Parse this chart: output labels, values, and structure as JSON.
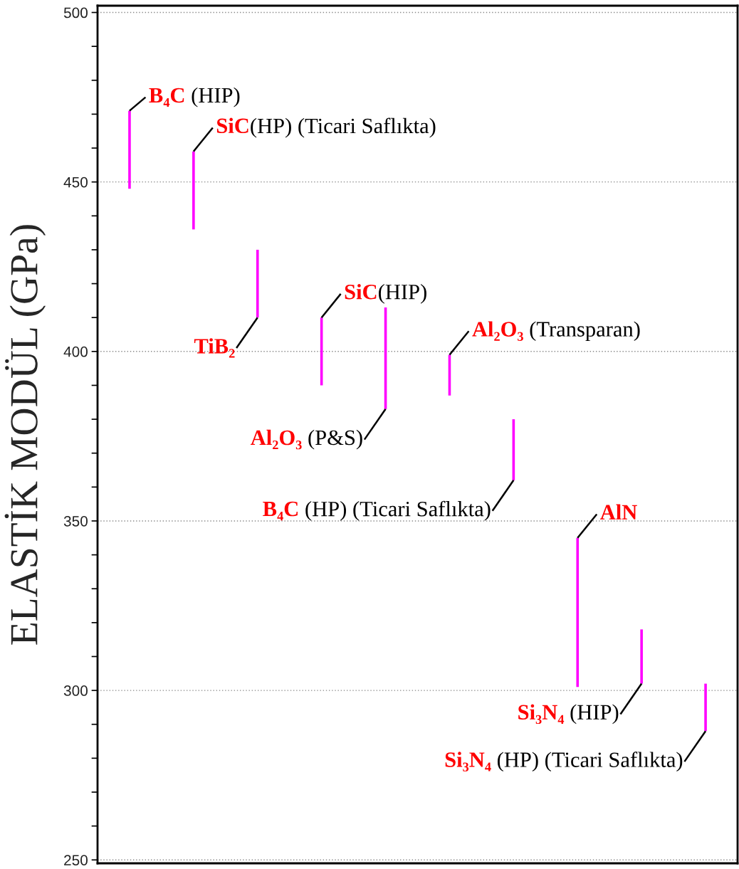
{
  "chart_data": {
    "type": "bar",
    "ylabel": "ELASTİK MODÜL (GPa)",
    "categories": [
      null,
      null,
      null,
      null,
      null,
      null,
      null,
      null,
      null,
      null
    ],
    "annotations": [
      "B₄C (HIP)",
      "SiC(HP) (Ticari Saflıkta)",
      "TiB₂",
      "SiC(HIP)",
      "Al₂O₃ (P&S)",
      "Al₂O₃ (Transparan)",
      "B₄C (HP) (Ticari Saflıkta)",
      "AlN",
      "Si₃N₄ (HIP)",
      "Si₃N₄ (HP) (Ticari Saflıkta)"
    ],
    "base": [
      448,
      436,
      410,
      390,
      383,
      387,
      362,
      301,
      302,
      288
    ],
    "values": [
      23,
      23,
      20,
      20,
      30,
      12,
      18,
      44,
      16,
      14
    ],
    "color": "#ff00ff",
    "ylim": [
      249,
      502
    ],
    "yticks": [
      250,
      {
        "value": 260,
        "label": null
      },
      {
        "value": 270,
        "label": null
      },
      {
        "value": 280,
        "label": null
      },
      {
        "value": 290,
        "label": null
      },
      300,
      {
        "value": 310,
        "label": null
      },
      {
        "value": 320,
        "label": null
      },
      {
        "value": 330,
        "label": null
      },
      {
        "value": 340,
        "label": null
      },
      350,
      {
        "value": 360,
        "label": null
      },
      {
        "value": 370,
        "label": null
      },
      {
        "value": 380,
        "label": null
      },
      {
        "value": 390,
        "label": null
      },
      400,
      {
        "value": 410,
        "label": null
      },
      {
        "value": 420,
        "label": null
      },
      {
        "value": 430,
        "label": null
      },
      {
        "value": 440,
        "label": null
      },
      450,
      {
        "value": 460,
        "label": null
      },
      {
        "value": 470,
        "label": null
      },
      {
        "value": 480,
        "label": null
      },
      {
        "value": 490,
        "label": null
      },
      500
    ],
    "grid": "y",
    "tick_labels": "y"
  }
}
